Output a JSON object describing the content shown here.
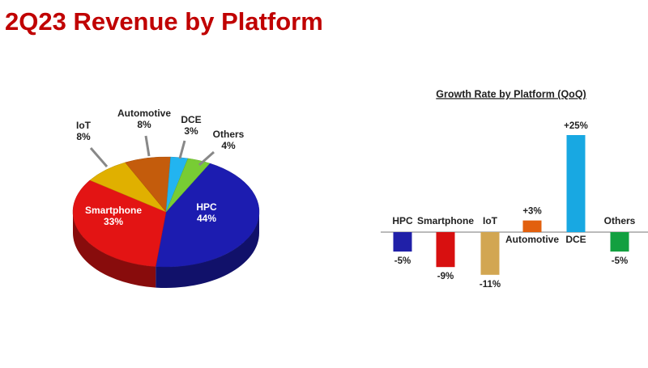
{
  "title": "2Q23 Revenue by Platform",
  "chart_data": [
    {
      "type": "pie",
      "categories": [
        "HPC",
        "Smartphone",
        "IoT",
        "Automotive",
        "DCE",
        "Others"
      ],
      "values": [
        44,
        33,
        8,
        8,
        3,
        4
      ],
      "value_labels": [
        "44%",
        "33%",
        "8%",
        "8%",
        "3%",
        "4%"
      ],
      "colors": [
        "#1c1cb0",
        "#e31414",
        "#e0b000",
        "#c45c0c",
        "#22b4f0",
        "#78cc34"
      ]
    },
    {
      "type": "bar",
      "title": "Growth Rate by Platform (QoQ)",
      "categories": [
        "HPC",
        "Smartphone",
        "IoT",
        "Automotive",
        "DCE",
        "Others"
      ],
      "values": [
        -5,
        -9,
        -11,
        3,
        25,
        -5
      ],
      "value_labels": [
        "-5%",
        "-9%",
        "-11%",
        "+3%",
        "+25%",
        "-5%"
      ],
      "colors": [
        "#2020a8",
        "#d81010",
        "#d2a652",
        "#e2600e",
        "#18a8e2",
        "#12a040"
      ]
    }
  ]
}
